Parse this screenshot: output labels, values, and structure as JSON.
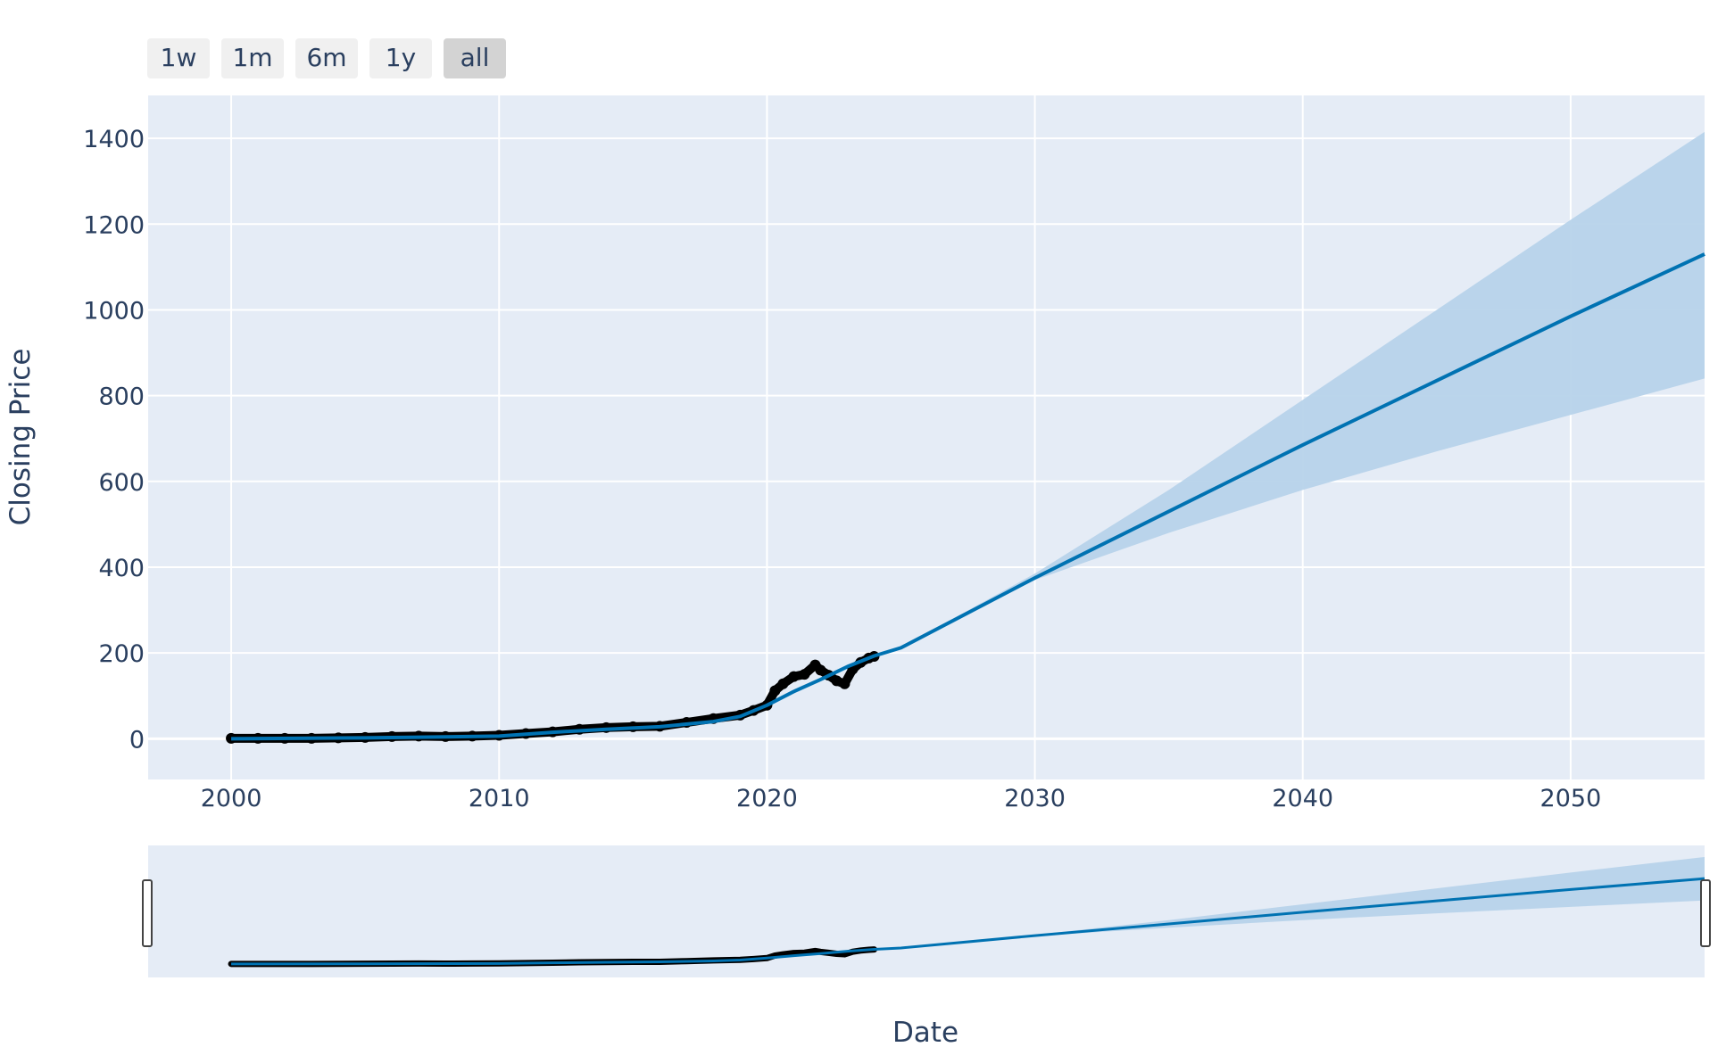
{
  "range_selector": {
    "buttons": [
      {
        "label": "1w",
        "active": false
      },
      {
        "label": "1m",
        "active": false
      },
      {
        "label": "6m",
        "active": false
      },
      {
        "label": "1y",
        "active": false
      },
      {
        "label": "all",
        "active": true
      }
    ]
  },
  "colors": {
    "plot_bg": "#e5ecf6",
    "grid": "#ffffff",
    "forecast_line": "#0072b2",
    "uncertainty_band": "#b7d3ea",
    "observed_points": "#000000",
    "button_bg": "#f0f0f0",
    "button_active_bg": "#d3d3d3",
    "text": "#2a3f5f"
  },
  "chart_data": {
    "type": "line",
    "title": "",
    "xlabel": "Date",
    "ylabel": "Closing Price",
    "x_is_year": true,
    "xlim": [
      1996.9,
      2055.0
    ],
    "ylim": [
      -95,
      1500
    ],
    "xticks": [
      2000,
      2010,
      2020,
      2030,
      2040,
      2050
    ],
    "yticks": [
      0,
      200,
      400,
      600,
      800,
      1000,
      1200,
      1400
    ],
    "grid": true,
    "rangeslider": true,
    "series": [
      {
        "kind": "markers",
        "x": [
          2000,
          2001,
          2002,
          2003,
          2004,
          2005,
          2006,
          2007,
          2008,
          2009,
          2010,
          2011,
          2012,
          2013,
          2014,
          2015,
          2016,
          2017,
          2018,
          2019,
          2019.5,
          2020,
          2020.3,
          2020.6,
          2021,
          2021.4,
          2021.8,
          2022,
          2022.3,
          2022.6,
          2022.9,
          2023.2,
          2023.5,
          2023.8,
          2024
        ],
        "y": [
          1,
          1,
          1,
          1,
          2,
          3,
          5,
          6,
          5,
          6,
          8,
          12,
          16,
          22,
          26,
          28,
          29,
          38,
          47,
          55,
          66,
          78,
          112,
          128,
          145,
          150,
          172,
          160,
          148,
          135,
          128,
          162,
          178,
          188,
          192
        ]
      },
      {
        "kind": "line",
        "x": [
          2000,
          2005,
          2010,
          2012,
          2014,
          2016,
          2018,
          2019,
          2020,
          2021,
          2022,
          2023,
          2024,
          2025,
          2030,
          2035,
          2040,
          2045,
          2050,
          2055
        ],
        "y": [
          0,
          2,
          6,
          15,
          22,
          28,
          40,
          52,
          78,
          110,
          138,
          168,
          193,
          212,
          375,
          530,
          685,
          835,
          985,
          1130
        ]
      },
      {
        "kind": "band",
        "x": [
          2024,
          2025,
          2030,
          2035,
          2040,
          2045,
          2050,
          2055
        ],
        "lower": [
          193,
          211,
          370,
          480,
          580,
          670,
          755,
          840
        ],
        "upper": [
          193,
          213,
          385,
          580,
          790,
          1000,
          1210,
          1415
        ]
      }
    ]
  }
}
